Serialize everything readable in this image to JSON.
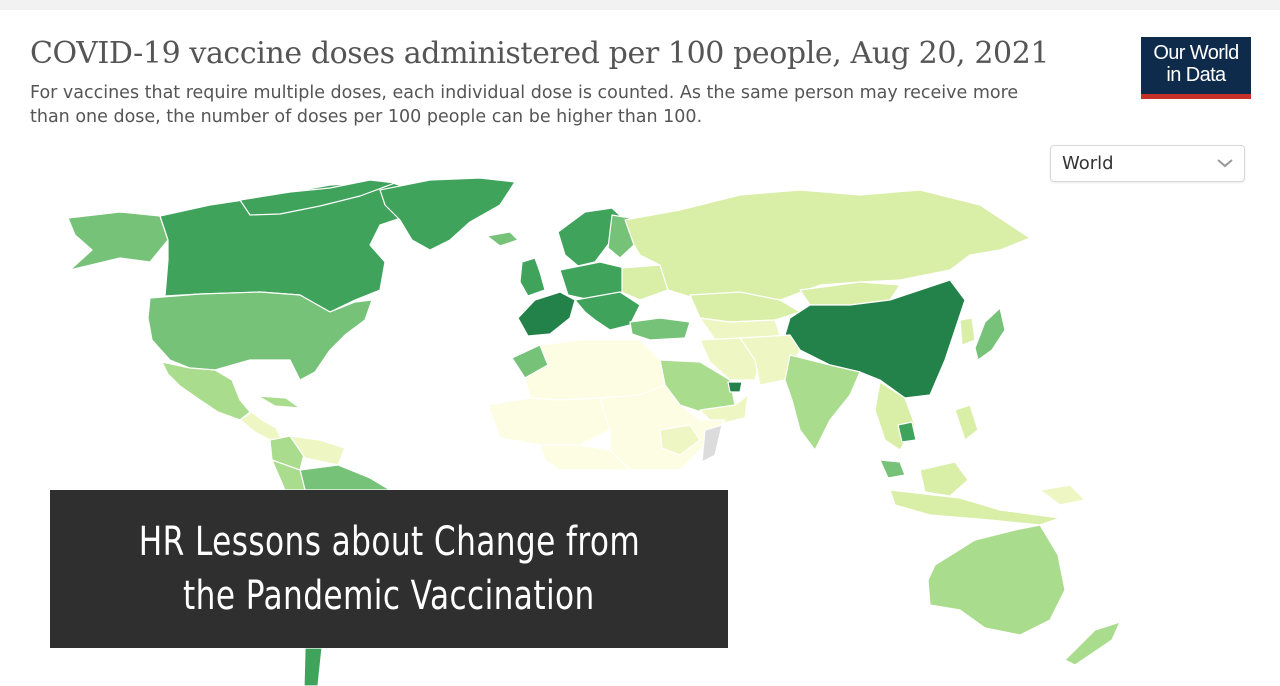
{
  "header": {
    "title": "COVID-19 vaccine doses administered per 100 people, Aug 20, 2021",
    "subtitle": "For vaccines that require multiple doses, each individual dose is counted. As the same person may receive more than one dose, the number of doses per 100 people can be higher than 100."
  },
  "logo": {
    "line1": "Our World",
    "line2": "in Data"
  },
  "region_select": {
    "selected": "World",
    "icon": "chevron-down-icon"
  },
  "banner": {
    "line1": "HR Lessons about Change from",
    "line2": "the Pandemic Vaccination"
  },
  "colors": {
    "brand_navy": "#0f2b4c",
    "brand_red": "#c8312a",
    "banner_bg": "#2f2f2f",
    "map_palette": [
      "#fdfde3",
      "#eef7c4",
      "#d9eea7",
      "#a9dc8c",
      "#75c278",
      "#40a35c",
      "#23814a",
      "#dcdcdc"
    ]
  }
}
